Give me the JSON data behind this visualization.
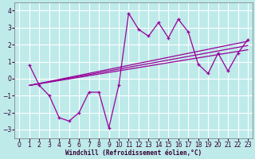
{
  "bg_color": "#beeaea",
  "line_color": "#990099",
  "grid_color": "#ffffff",
  "xlabel": "Windchill (Refroidissement éolien,°C)",
  "xlim": [
    -0.5,
    23.5
  ],
  "ylim": [
    -3.5,
    4.5
  ],
  "xticks": [
    0,
    1,
    2,
    3,
    4,
    5,
    6,
    7,
    8,
    9,
    10,
    11,
    12,
    13,
    14,
    15,
    16,
    17,
    18,
    19,
    20,
    21,
    22,
    23
  ],
  "yticks": [
    -3,
    -2,
    -1,
    0,
    1,
    2,
    3,
    4
  ],
  "main_x": [
    1,
    2,
    3,
    4,
    5,
    6,
    7,
    8,
    9,
    10,
    11,
    12,
    13,
    14,
    15,
    16,
    17,
    18,
    19,
    20,
    21,
    22,
    23
  ],
  "main_y": [
    0.8,
    -0.4,
    -1.0,
    -2.3,
    -2.5,
    -2.0,
    -0.8,
    -0.8,
    -2.9,
    -0.4,
    3.85,
    2.9,
    2.5,
    3.3,
    2.4,
    3.5,
    2.75,
    0.85,
    0.3,
    1.5,
    0.45,
    1.5,
    2.3
  ],
  "reg_lines": [
    [
      [
        1,
        23
      ],
      [
        -0.4,
        2.2
      ]
    ],
    [
      [
        1,
        23
      ],
      [
        -0.4,
        1.95
      ]
    ],
    [
      [
        1,
        23
      ],
      [
        -0.4,
        1.7
      ]
    ]
  ],
  "xlabel_color": "#330033",
  "tick_color": "#330033",
  "tick_labelsize": 5.5,
  "xlabel_fontsize": 5.5
}
